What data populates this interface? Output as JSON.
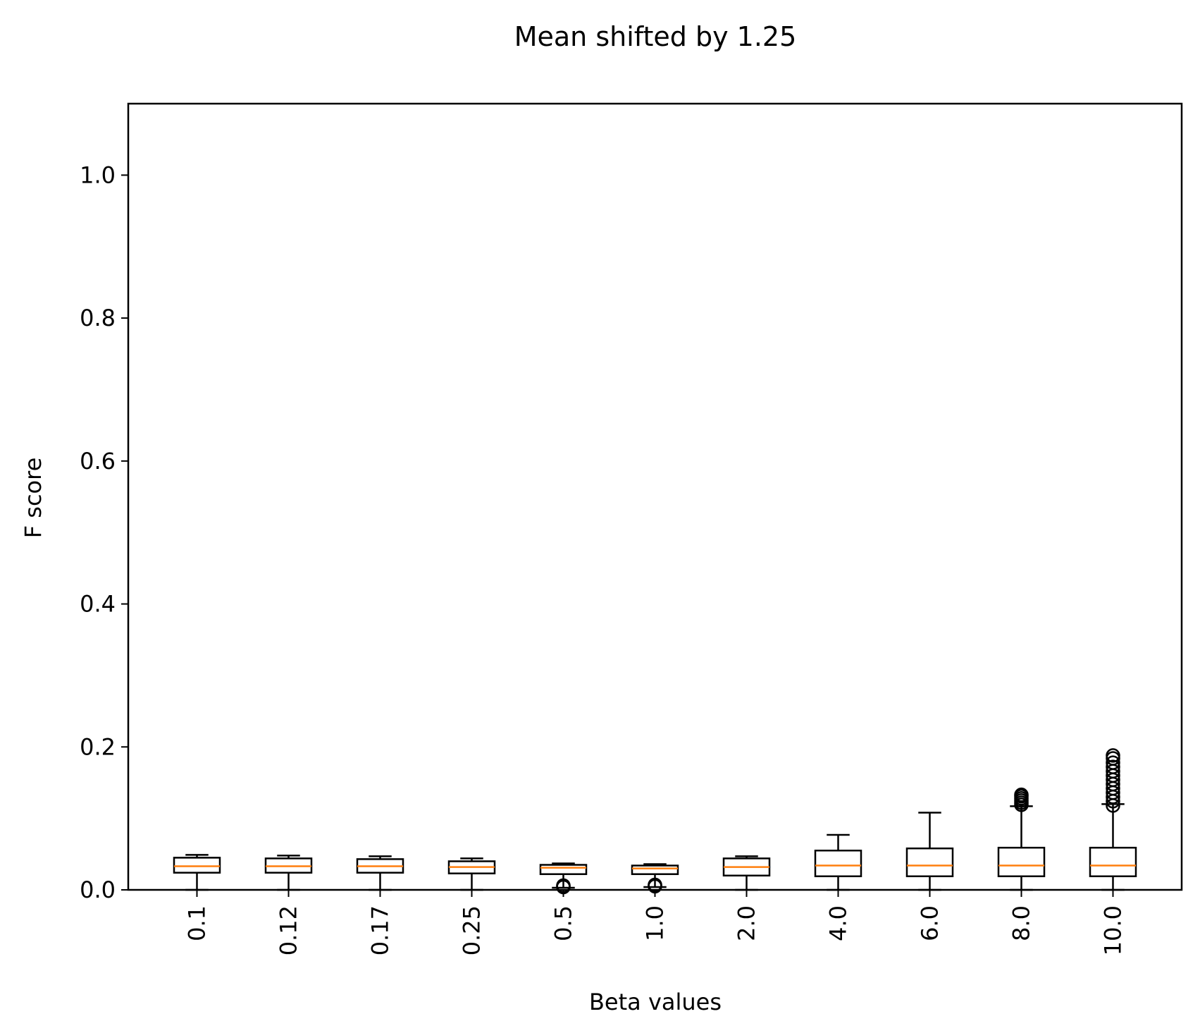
{
  "chart_data": {
    "type": "box",
    "title": "Mean shifted by 1.25",
    "xlabel": "Beta values",
    "ylabel": "F score",
    "ylim": [
      0,
      1.1
    ],
    "yticks": [
      "0.0",
      "0.2",
      "0.4",
      "0.6",
      "0.8",
      "1.0"
    ],
    "grid": false,
    "colors": {
      "median": "#ff7f0e",
      "box": "#000000"
    },
    "categories": [
      "0.1",
      "0.12",
      "0.17",
      "0.25",
      "0.5",
      "1.0",
      "2.0",
      "4.0",
      "6.0",
      "8.0",
      "10.0"
    ],
    "boxes": [
      {
        "whislo": 0.0,
        "q1": 0.024,
        "med": 0.033,
        "q3": 0.045,
        "whishi": 0.049,
        "fliers": []
      },
      {
        "whislo": 0.0,
        "q1": 0.024,
        "med": 0.033,
        "q3": 0.044,
        "whishi": 0.048,
        "fliers": []
      },
      {
        "whislo": 0.0,
        "q1": 0.024,
        "med": 0.033,
        "q3": 0.043,
        "whishi": 0.047,
        "fliers": []
      },
      {
        "whislo": 0.0,
        "q1": 0.023,
        "med": 0.032,
        "q3": 0.04,
        "whishi": 0.044,
        "fliers": []
      },
      {
        "whislo": 0.003,
        "q1": 0.022,
        "med": 0.031,
        "q3": 0.035,
        "whishi": 0.037,
        "fliers": [
          0.004,
          0.005,
          0.006
        ]
      },
      {
        "whislo": 0.004,
        "q1": 0.022,
        "med": 0.03,
        "q3": 0.034,
        "whishi": 0.036,
        "fliers": [
          0.005,
          0.006,
          0.007
        ]
      },
      {
        "whislo": 0.0,
        "q1": 0.02,
        "med": 0.032,
        "q3": 0.044,
        "whishi": 0.047,
        "fliers": []
      },
      {
        "whislo": 0.0,
        "q1": 0.019,
        "med": 0.034,
        "q3": 0.055,
        "whishi": 0.077,
        "fliers": []
      },
      {
        "whislo": 0.0,
        "q1": 0.019,
        "med": 0.034,
        "q3": 0.058,
        "whishi": 0.108,
        "fliers": []
      },
      {
        "whislo": 0.0,
        "q1": 0.019,
        "med": 0.034,
        "q3": 0.059,
        "whishi": 0.117,
        "fliers": [
          0.119,
          0.122,
          0.125,
          0.128,
          0.131,
          0.133
        ]
      },
      {
        "whislo": 0.0,
        "q1": 0.019,
        "med": 0.034,
        "q3": 0.059,
        "whishi": 0.12,
        "fliers": [
          0.118,
          0.124,
          0.13,
          0.136,
          0.142,
          0.148,
          0.154,
          0.16,
          0.166,
          0.172,
          0.178,
          0.184,
          0.188
        ]
      }
    ]
  }
}
